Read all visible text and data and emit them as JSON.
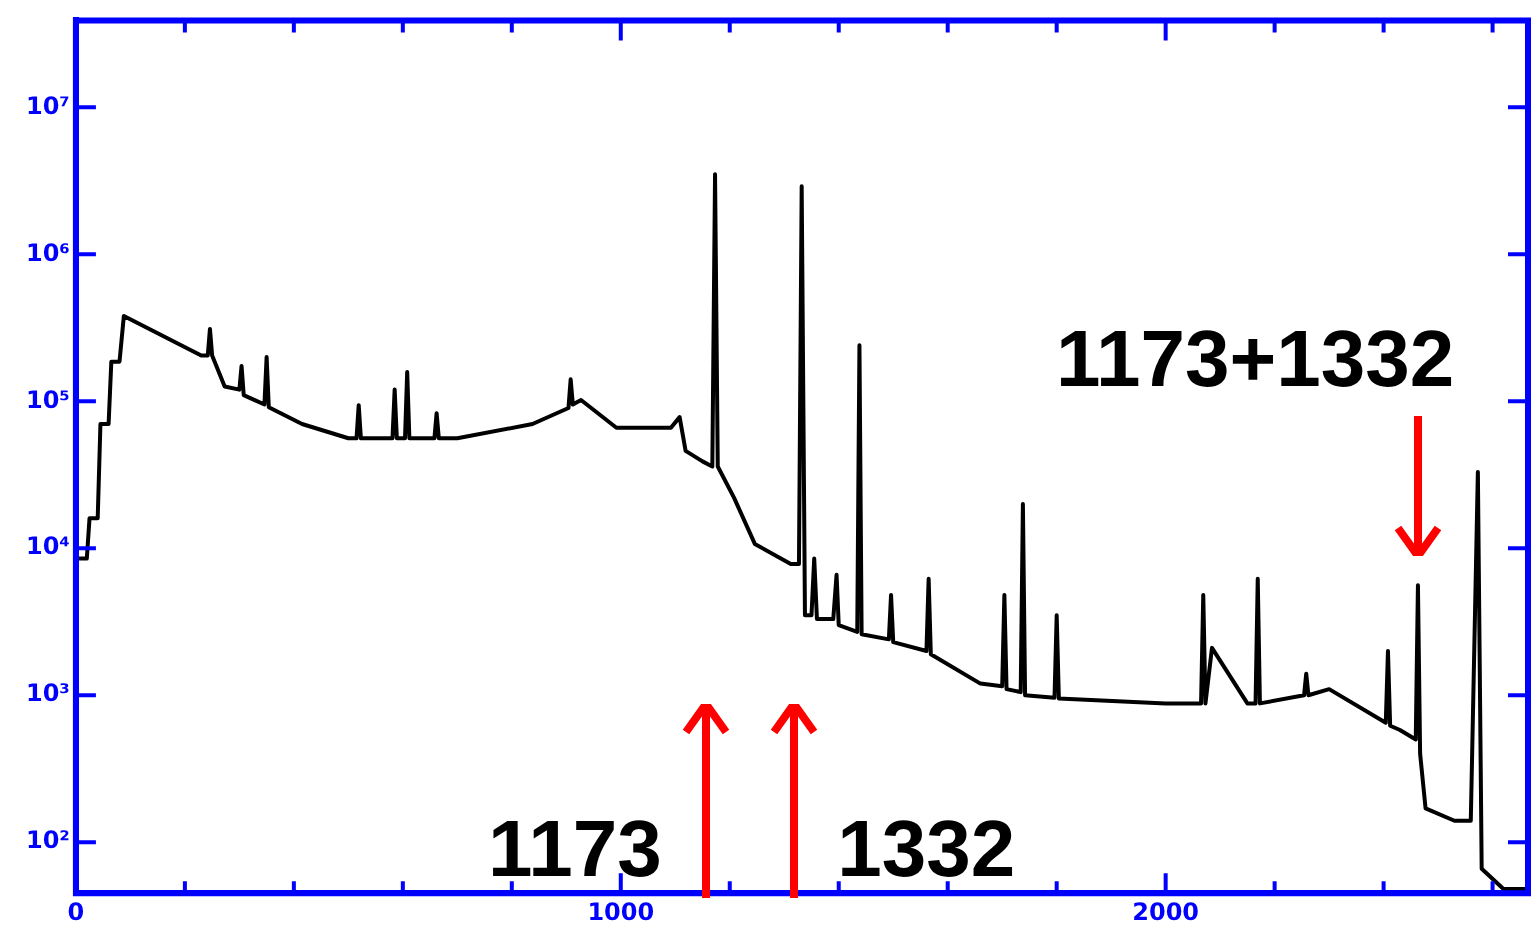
{
  "chart_data": {
    "type": "line",
    "log": true,
    "grid": false,
    "legend": false,
    "marker": "none",
    "line_style": "solid",
    "xlim": [
      0,
      2665
    ],
    "ylim": [
      45,
      39000000
    ],
    "xticks": [
      0,
      {
        "value": 200,
        "label": null
      },
      {
        "value": 400,
        "label": null
      },
      {
        "value": 600,
        "label": null
      },
      {
        "value": 800,
        "label": null
      },
      1000,
      {
        "value": 1200,
        "label": null
      },
      {
        "value": 1400,
        "label": null
      },
      {
        "value": 1600,
        "label": null
      },
      {
        "value": 1800,
        "label": null
      },
      2000,
      {
        "value": 2200,
        "label": null
      },
      {
        "value": 2400,
        "label": null
      },
      {
        "value": 2600,
        "label": null
      }
    ],
    "yticks": [
      {
        "value": 100,
        "label": "10²"
      },
      {
        "value": 1000,
        "label": "10³"
      },
      {
        "value": 10000,
        "label": "10⁴"
      },
      {
        "value": 100000,
        "label": "10⁵"
      },
      {
        "value": 1000000,
        "label": "10⁶"
      },
      {
        "value": 10000000,
        "label": "10⁷"
      }
    ],
    "x": [
      0,
      20,
      25,
      40,
      45,
      60,
      65,
      80,
      88,
      150,
      230,
      242,
      246,
      250,
      273,
      300,
      304,
      308,
      346,
      350,
      354,
      415,
      500,
      515,
      519,
      523,
      581,
      585,
      589,
      604,
      608,
      612,
      658,
      662,
      666,
      700,
      838,
      904,
      908,
      912,
      927,
      992,
      1092,
      1108,
      1119,
      1150,
      1168,
      1173,
      1178,
      1208,
      1246,
      1312,
      1327,
      1332,
      1338,
      1350,
      1355,
      1360,
      1390,
      1396,
      1400,
      1434,
      1438,
      1442,
      1492,
      1496,
      1500,
      1561,
      1565,
      1569,
      1660,
      1700,
      1704,
      1708,
      1734,
      1738,
      1742,
      1785,
      1796,
      1800,
      1804,
      2000,
      2065,
      2069,
      2073,
      2085,
      2150,
      2165,
      2169,
      2173,
      2254,
      2258,
      2262,
      2300,
      2404,
      2408,
      2412,
      2430,
      2459,
      2463,
      2467,
      2477,
      2530,
      2560,
      2573,
      2580,
      2620,
      2665
    ],
    "series": [
      {
        "color": "#000000",
        "values": [
          8500,
          8500,
          16000,
          16000,
          70000,
          70000,
          186000,
          186000,
          380000,
          290000,
          205000,
          205000,
          310000,
          205000,
          126000,
          120000,
          174000,
          110000,
          95000,
          200000,
          91000,
          70000,
          56000,
          56000,
          94000,
          56000,
          56000,
          120000,
          56000,
          56000,
          158000,
          56000,
          56000,
          83000,
          56000,
          56000,
          70000,
          90000,
          141000,
          95000,
          102000,
          66000,
          66000,
          78000,
          46000,
          39000,
          36000,
          3500000,
          36000,
          22000,
          10700,
          7800,
          7800,
          2900000,
          3500,
          3500,
          8500,
          3300,
          3300,
          6600,
          3000,
          2700,
          240000,
          2600,
          2400,
          4800,
          2300,
          2000,
          6200,
          1900,
          1200,
          1150,
          4800,
          1100,
          1050,
          20000,
          1000,
          970,
          960,
          3500,
          950,
          880,
          880,
          4800,
          880,
          2100,
          880,
          880,
          6200,
          880,
          1000,
          1400,
          1000,
          1100,
          650,
          2000,
          620,
          580,
          500,
          5600,
          400,
          170,
          140,
          140,
          33000,
          66,
          48,
          48
        ]
      }
    ],
    "annotations": [
      "1173",
      "1332",
      {
        "text": "1173+1332",
        "x": 2463,
        "y": 5600
      }
    ]
  }
}
